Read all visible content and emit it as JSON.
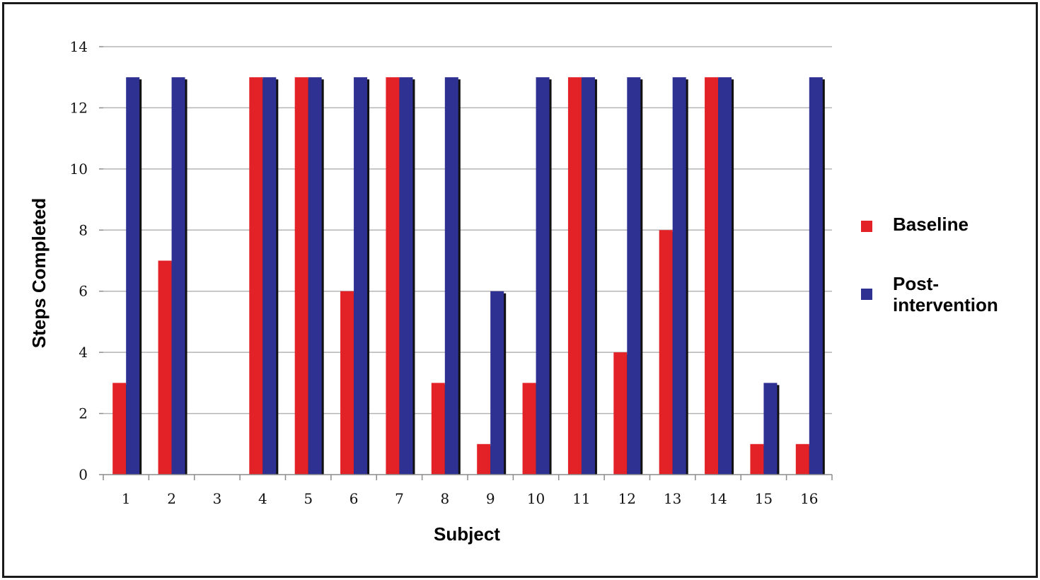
{
  "chart_data": {
    "type": "bar",
    "categories": [
      "1",
      "2",
      "3",
      "4",
      "5",
      "6",
      "7",
      "8",
      "9",
      "10",
      "11",
      "12",
      "13",
      "14",
      "15",
      "16"
    ],
    "series": [
      {
        "name": "Baseline",
        "color": "#e32228",
        "values": [
          3,
          7,
          0,
          13,
          13,
          6,
          13,
          3,
          1,
          3,
          13,
          4,
          8,
          13,
          1,
          1
        ]
      },
      {
        "name": "Post-intervention",
        "color": "#2e3192",
        "values": [
          13,
          13,
          0,
          13,
          13,
          13,
          13,
          13,
          6,
          13,
          13,
          13,
          13,
          13,
          3,
          13
        ]
      }
    ],
    "xlabel": "Subject",
    "ylabel": "Steps Completed",
    "ylim": [
      0,
      14
    ],
    "yticks": [
      "0",
      "2",
      "4",
      "6",
      "8",
      "10",
      "12",
      "14"
    ],
    "grid": true,
    "legend_position": "right",
    "legend": {
      "baseline_label": "Baseline",
      "post_label_line1": "Post-",
      "post_label_line2": "intervention"
    }
  }
}
